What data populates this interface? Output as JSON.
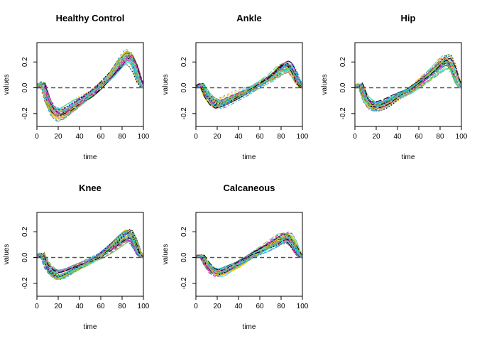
{
  "figure": {
    "panel_order": [
      "Healthy Control",
      "Ankle",
      "Hip",
      "Knee",
      "Calcaneous"
    ]
  },
  "colors": {
    "palette": [
      "#000000",
      "#df536b",
      "#61d04f",
      "#2297e6",
      "#28e2e5",
      "#cd0bbc",
      "#f5c710",
      "#9e9e9e"
    ],
    "reference_line": "#555555"
  },
  "chart_data": [
    {
      "type": "line",
      "title": "Healthy Control",
      "xlabel": "time",
      "ylabel": "values",
      "xlim": [
        0,
        100
      ],
      "ylim": [
        -0.3,
        0.35
      ],
      "xticks": [
        "0",
        "20",
        "40",
        "60",
        "80",
        "100"
      ],
      "yticks": [
        "-0.2",
        "0.0",
        "0.2"
      ],
      "ytick_values": [
        -0.2,
        0.0,
        0.2
      ],
      "reference_line_y": 0,
      "n_curves": 40,
      "x": [
        0,
        5,
        10,
        15,
        20,
        25,
        30,
        40,
        50,
        60,
        70,
        80,
        85,
        88,
        92,
        96,
        100
      ],
      "mean_curve": [
        0,
        0.04,
        -0.1,
        -0.18,
        -0.21,
        -0.2,
        -0.17,
        -0.11,
        -0.05,
        0.02,
        0.1,
        0.21,
        0.25,
        0.24,
        0.17,
        0.06,
        0.0
      ]
    },
    {
      "type": "line",
      "title": "Ankle",
      "xlabel": "time",
      "ylabel": "values",
      "xlim": [
        0,
        100
      ],
      "ylim": [
        -0.3,
        0.35
      ],
      "xticks": [
        "0",
        "20",
        "40",
        "60",
        "80",
        "100"
      ],
      "yticks": [
        "-0.2",
        "0.0",
        "0.2"
      ],
      "ytick_values": [
        -0.2,
        0.0,
        0.2
      ],
      "reference_line_y": 0,
      "n_curves": 45,
      "x": [
        0,
        5,
        10,
        15,
        20,
        25,
        30,
        40,
        50,
        60,
        70,
        80,
        85,
        88,
        92,
        96,
        100
      ],
      "mean_curve": [
        0,
        0.03,
        -0.06,
        -0.11,
        -0.13,
        -0.12,
        -0.1,
        -0.06,
        -0.02,
        0.03,
        0.08,
        0.15,
        0.17,
        0.16,
        0.11,
        0.04,
        0.0
      ]
    },
    {
      "type": "line",
      "title": "Hip",
      "xlabel": "time",
      "ylabel": "values",
      "xlim": [
        0,
        100
      ],
      "ylim": [
        -0.3,
        0.35
      ],
      "xticks": [
        "0",
        "20",
        "40",
        "60",
        "80",
        "100"
      ],
      "yticks": [
        "-0.2",
        "0.0",
        "0.2"
      ],
      "ytick_values": [
        -0.2,
        0.0,
        0.2
      ],
      "reference_line_y": 0,
      "n_curves": 45,
      "x": [
        0,
        5,
        10,
        15,
        20,
        25,
        30,
        40,
        50,
        60,
        70,
        80,
        85,
        88,
        92,
        96,
        100
      ],
      "mean_curve": [
        0,
        0.03,
        -0.09,
        -0.14,
        -0.15,
        -0.14,
        -0.12,
        -0.07,
        -0.03,
        0.03,
        0.1,
        0.18,
        0.21,
        0.21,
        0.15,
        0.05,
        0.0
      ]
    },
    {
      "type": "line",
      "title": "Knee",
      "xlabel": "time",
      "ylabel": "values",
      "xlim": [
        0,
        100
      ],
      "ylim": [
        -0.3,
        0.35
      ],
      "xticks": [
        "0",
        "20",
        "40",
        "60",
        "80",
        "100"
      ],
      "yticks": [
        "-0.2",
        "0.0",
        "0.2"
      ],
      "ytick_values": [
        -0.2,
        0.0,
        0.2
      ],
      "reference_line_y": 0,
      "n_curves": 45,
      "x": [
        0,
        5,
        10,
        15,
        20,
        25,
        30,
        40,
        50,
        60,
        70,
        80,
        85,
        88,
        92,
        96,
        100
      ],
      "mean_curve": [
        0,
        0.03,
        -0.07,
        -0.12,
        -0.14,
        -0.13,
        -0.11,
        -0.07,
        -0.03,
        0.02,
        0.08,
        0.15,
        0.18,
        0.17,
        0.11,
        0.03,
        0.0
      ]
    },
    {
      "type": "line",
      "title": "Calcaneous",
      "xlabel": "time",
      "ylabel": "values",
      "xlim": [
        0,
        100
      ],
      "ylim": [
        -0.3,
        0.35
      ],
      "xticks": [
        "0",
        "20",
        "40",
        "60",
        "80",
        "100"
      ],
      "yticks": [
        "-0.2",
        "0.0",
        "0.2"
      ],
      "ytick_values": [
        -0.2,
        0.0,
        0.2
      ],
      "reference_line_y": 0,
      "n_curves": 45,
      "x": [
        0,
        5,
        10,
        15,
        20,
        25,
        30,
        40,
        50,
        60,
        70,
        80,
        85,
        88,
        92,
        96,
        100
      ],
      "mean_curve": [
        0,
        0.02,
        -0.05,
        -0.1,
        -0.12,
        -0.11,
        -0.09,
        -0.05,
        0.0,
        0.05,
        0.1,
        0.15,
        0.16,
        0.15,
        0.1,
        0.03,
        0.0
      ]
    }
  ]
}
